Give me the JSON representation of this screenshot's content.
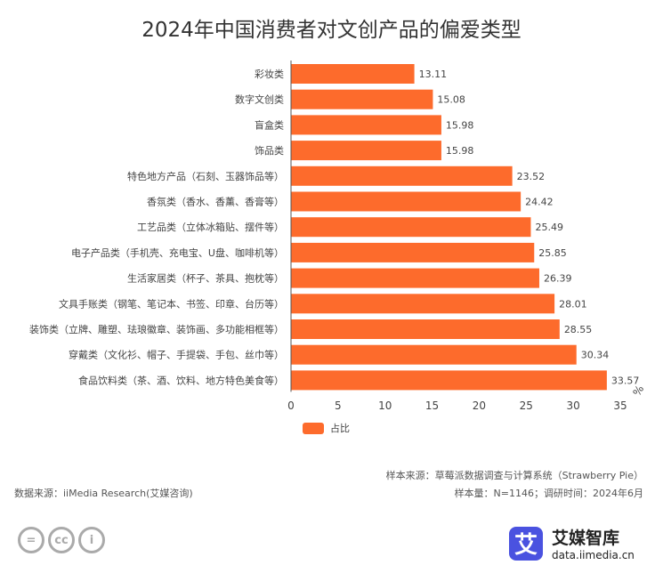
{
  "chart_data": {
    "type": "bar",
    "orientation": "horizontal",
    "title": "2024年中国消费者对文创产品的偏爱类型",
    "categories": [
      "彩妆类",
      "数字文创类",
      "盲盒类",
      "饰品类",
      "特色地方产品（石刻、玉器饰品等）",
      "香氛类（香水、香薰、香膏等）",
      "工艺品类（立体冰箱贴、摆件等）",
      "电子产品类（手机壳、充电宝、U盘、咖啡机等）",
      "生活家居类（杯子、茶具、抱枕等）",
      "文具手账类（钢笔、笔记本、书签、印章、台历等）",
      "装饰类（立牌、雕塑、珐琅徽章、装饰画、多功能相框等）",
      "穿戴类（文化衫、帽子、手提袋、手包、丝巾等）",
      "食品饮料类（茶、酒、饮料、地方特色美食等）"
    ],
    "series": [
      {
        "name": "占比",
        "values": [
          13.11,
          15.08,
          15.98,
          15.98,
          23.52,
          24.42,
          25.49,
          25.85,
          26.39,
          28.01,
          28.55,
          30.34,
          33.57
        ],
        "color": "#fd6b2c"
      }
    ],
    "xlim": [
      0,
      35
    ],
    "xticks": [
      0,
      5,
      10,
      15,
      20,
      25,
      30,
      35
    ],
    "unit": "%",
    "grid": false,
    "legend": "bottom-left"
  },
  "footer": {
    "source_sample": "样本来源：草莓派数据调查与计算系统（Strawberry Pie）",
    "sample_size": "样本量：N=1146；调研时间：2024年6月",
    "data_source": "数据来源：iiMedia Research(艾媒咨询)"
  },
  "logo": {
    "mark": "艾",
    "name": "艾媒智库",
    "url": "data.iimedia.cn"
  },
  "license_icons": [
    "equal-icon",
    "cc-icon",
    "person-icon"
  ]
}
